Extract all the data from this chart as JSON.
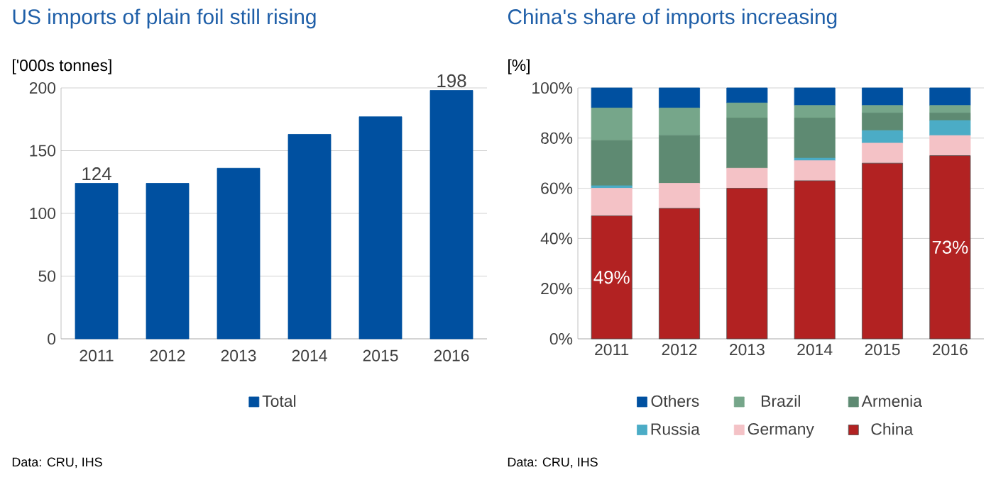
{
  "chart_data": [
    {
      "type": "bar",
      "title": "US imports of plain foil still rising",
      "ylabel": "['000s tonnes]",
      "categories": [
        "2011",
        "2012",
        "2013",
        "2014",
        "2015",
        "2016"
      ],
      "series": [
        {
          "name": "Total",
          "color": "#0050a0",
          "values": [
            124,
            124,
            136,
            163,
            177,
            198
          ],
          "value_labels": [
            "124",
            null,
            null,
            null,
            null,
            "198"
          ]
        }
      ],
      "ylim": [
        0,
        200
      ],
      "yticks": [
        0,
        50,
        100,
        150,
        200
      ],
      "grid": "y",
      "legend": "bottom",
      "annotations": [
        "Data: CRU, IHS"
      ]
    },
    {
      "type": "bar",
      "title": "China's share of imports increasing",
      "ylabel": "[%]",
      "stacked": true,
      "categories": [
        "2011",
        "2012",
        "2013",
        "2014",
        "2015",
        "2016"
      ],
      "series": [
        {
          "name": "China",
          "color": "#b22222",
          "values": [
            49,
            52,
            60,
            63,
            70,
            73
          ],
          "value_labels": [
            "49%",
            null,
            null,
            null,
            null,
            "73%"
          ]
        },
        {
          "name": "Germany",
          "color": "#f4c2c6",
          "values": [
            11,
            10,
            8,
            8,
            8,
            8
          ]
        },
        {
          "name": "Russia",
          "color": "#4bacc6",
          "values": [
            1,
            0,
            0,
            1,
            5,
            6
          ]
        },
        {
          "name": "Armenia",
          "color": "#5e8a72",
          "values": [
            18,
            19,
            20,
            16,
            7,
            3
          ]
        },
        {
          "name": "Brazil",
          "color": "#76a68a",
          "values": [
            13,
            11,
            6,
            5,
            3,
            3
          ]
        },
        {
          "name": "Others",
          "color": "#0050a0",
          "values": [
            8,
            8,
            6,
            7,
            7,
            7
          ]
        }
      ],
      "ylim": [
        0,
        100
      ],
      "yticks": [
        {
          "value": 0,
          "label": "0%"
        },
        {
          "value": 20,
          "label": "20%"
        },
        {
          "value": 40,
          "label": "40%"
        },
        {
          "value": 60,
          "label": "60%"
        },
        {
          "value": 80,
          "label": "80%"
        },
        {
          "value": 100,
          "label": "100%"
        }
      ],
      "grid": "y",
      "legend": "bottom",
      "annotations": [
        "Data: CRU, IHS"
      ]
    }
  ]
}
